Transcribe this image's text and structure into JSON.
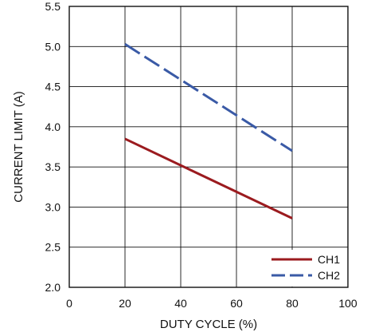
{
  "chart_data": {
    "type": "line",
    "title": "",
    "xlabel": "DUTY CYCLE (%)",
    "ylabel": "CURRENT LIMIT (A)",
    "xlim": [
      0,
      100
    ],
    "ylim": [
      2.0,
      5.5
    ],
    "x_ticks": [
      "0",
      "20",
      "40",
      "60",
      "80",
      "100"
    ],
    "y_ticks": [
      "2.0",
      "2.5",
      "3.0",
      "3.5",
      "4.0",
      "4.5",
      "5.0",
      "5.5"
    ],
    "grid": true,
    "legend_position": "bottom-right",
    "series": [
      {
        "name": "CH1",
        "color": "#9b1b1f",
        "style": "solid",
        "x": [
          20,
          80
        ],
        "y": [
          3.85,
          2.86
        ]
      },
      {
        "name": "CH2",
        "color": "#3a5aa6",
        "style": "dashed",
        "x": [
          20,
          80
        ],
        "y": [
          5.03,
          3.7
        ]
      }
    ]
  }
}
